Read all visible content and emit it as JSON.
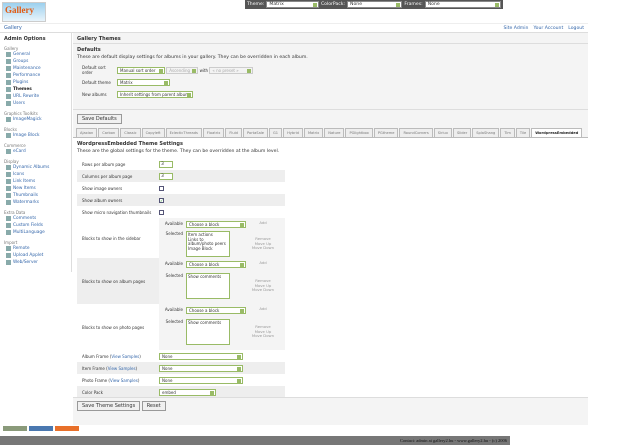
{
  "logo": "Gallery",
  "topbar": {
    "theme_label": "Theme:",
    "theme": "Matrix",
    "colorpack_label": "ColorPack:",
    "colorpack": "None",
    "frames_label": "Frames:",
    "frames": "None"
  },
  "breadcrumb": "Gallery",
  "user_links": [
    "Site Admin",
    "Your Account",
    "Logout"
  ],
  "sidebar": {
    "title": "Admin Options",
    "groups": [
      {
        "name": "Gallery",
        "items": [
          "General",
          "Groups",
          "Maintenance",
          "Performance",
          "Plugins",
          "Themes",
          "URL Rewrite",
          "Users"
        ]
      },
      {
        "name": "Graphics Toolkits",
        "items": [
          "ImageMagick"
        ]
      },
      {
        "name": "Blocks",
        "items": [
          "Image Block"
        ]
      },
      {
        "name": "Commerce",
        "items": [
          "eCard"
        ]
      },
      {
        "name": "Display",
        "items": [
          "Dynamic Albums",
          "Icons",
          "Link Items",
          "New Items",
          "Thumbnails",
          "Watermarks"
        ]
      },
      {
        "name": "Extra Data",
        "items": [
          "Comments",
          "Custom Fields",
          "MultiLanguage"
        ]
      },
      {
        "name": "Import",
        "items": [
          "Remote",
          "Upload Applet",
          "Web/Server"
        ]
      }
    ],
    "active": "Themes"
  },
  "page_title": "Gallery Themes",
  "defaults": {
    "title": "Defaults",
    "description": "These are default display settings for albums in your gallery. They can be overridden in each album.",
    "sort_label": "Default sort order",
    "sort": "Manual sort order",
    "direction": "Ascending",
    "with_label": "with",
    "secondary": "« no preset »",
    "theme_label": "Default theme",
    "theme": "Matrix",
    "new_albums_label": "New albums",
    "new_albums": "Inherit settings from parent album",
    "save": "Save Defaults"
  },
  "tabs": [
    "Ajaxian",
    "Carbon",
    "Classic",
    "Copyleft",
    "EclecticThreads",
    "Floatrix",
    "Fluid",
    "PortaSale",
    "G1",
    "Hybrid",
    "Matrix",
    "Nature",
    "PGlightbox",
    "PGtheme",
    "RoundCorners",
    "Siriux",
    "Slider",
    "SplaShang",
    "Tim",
    "Tile",
    "WordpressEmbedded"
  ],
  "active_tab": "WordpressEmbedded",
  "settings": {
    "title": "WordpressEmbedded Theme Settings",
    "description": "These are the global settings for the theme. They can be overridden at the album level.",
    "rows_label": "Rows per album page",
    "rows": "3",
    "cols_label": "Columns per album page",
    "cols": "3",
    "image_owners_label": "Show image owners",
    "image_owners": false,
    "album_owners_label": "Show album owners",
    "album_owners": true,
    "micro_label": "Show micro navigation thumbnails",
    "micro": false,
    "available_label": "Available",
    "selected_label": "Selected",
    "choose": "Choose a block",
    "add": "Add",
    "remove": "Remove",
    "up": "Move Up",
    "down": "Move Down",
    "sidebar_blocks_label": "Blocks to show in the sidebar",
    "sidebar_blocks": [
      "Item actions",
      "Links to album/photo peers",
      "Image Block"
    ],
    "album_blocks_label": "Blocks to show on album pages",
    "album_blocks": [
      "Show comments"
    ],
    "photo_blocks_label": "Blocks to show on photo pages",
    "photo_blocks": [
      "Show comments"
    ],
    "album_frame_label": "Album Frame",
    "item_frame_label": "Item Frame",
    "photo_frame_label": "Photo Frame",
    "view_samples": "View Samples",
    "album_frame": "None",
    "item_frame": "None",
    "photo_frame": "None",
    "colorpack_label": "Color Pack",
    "colorpack": "embed",
    "save": "Save Theme Settings",
    "reset": "Reset"
  },
  "footer": "Contact: admin at gallery2.hu - www.gallery2.hu - (c) 2006"
}
